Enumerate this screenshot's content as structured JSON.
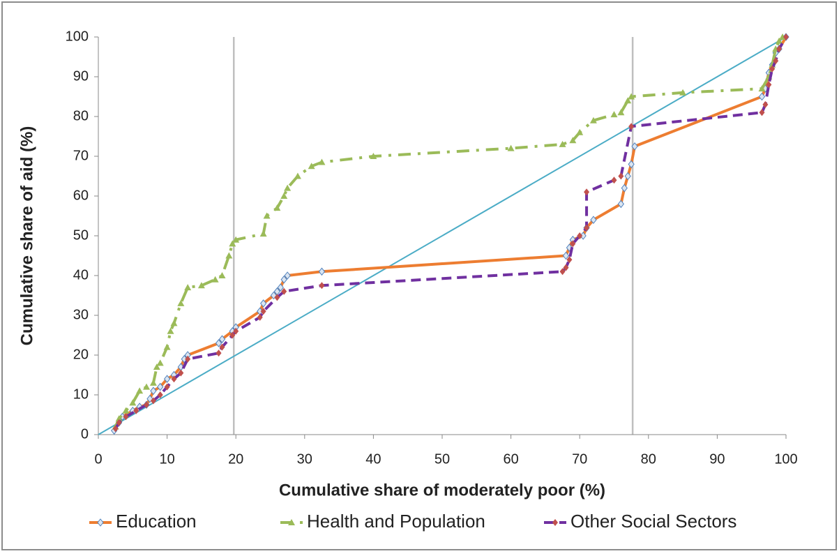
{
  "chart_data": {
    "type": "line",
    "xlabel": "Cumulative share of  moderately poor (%)",
    "ylabel": "Cumulative share of aid (%)",
    "xlim": [
      0,
      100
    ],
    "xticks": [
      0,
      10,
      20,
      30,
      40,
      50,
      60,
      70,
      80,
      90,
      100
    ],
    "ylim": [
      0,
      100
    ],
    "yticks": [
      0,
      10,
      20,
      30,
      40,
      50,
      60,
      70,
      80,
      90,
      100
    ],
    "vlines": [
      19.7,
      77.7
    ],
    "vline_color": "#bfbfbf",
    "diagonal": {
      "x": [
        0,
        100
      ],
      "values": [
        0,
        100
      ],
      "color": "#4bacc6"
    },
    "legend": "bottom",
    "series": [
      {
        "name": "Education",
        "color": "#ed7d31",
        "marker_color": "#7da7d9",
        "dash": "solid",
        "x": [
          2.3,
          3,
          3.5,
          5,
          6,
          7,
          7.5,
          8,
          9,
          10,
          11,
          12,
          12.5,
          13,
          17.5,
          18,
          19.5,
          20,
          23.5,
          24,
          25.5,
          26,
          26.5,
          27,
          27.5,
          32.5,
          68,
          68.5,
          69,
          70.5,
          71,
          72,
          76,
          76.5,
          77,
          77.5,
          78,
          96.5,
          97,
          97.5,
          98,
          98.5,
          99,
          100
        ],
        "values": [
          1,
          3,
          4.5,
          6,
          7,
          7.5,
          9,
          11,
          12,
          14,
          15,
          17,
          19,
          20,
          23,
          24,
          26,
          27,
          31,
          33,
          35,
          36,
          37,
          39,
          40,
          41,
          45,
          47,
          49,
          50,
          52,
          54,
          58,
          62,
          65,
          68,
          72.5,
          85,
          87,
          91,
          93,
          96,
          97,
          100
        ]
      },
      {
        "name": "Health and Population",
        "color": "#9bbb59",
        "marker_color": "#9bbb59",
        "dash": "dashdot",
        "x": [
          2.5,
          3,
          4,
          5,
          6,
          7,
          8,
          8.5,
          9,
          10,
          10.5,
          11,
          12,
          13,
          15,
          17,
          18,
          19,
          19.5,
          20,
          24,
          24.5,
          26,
          27,
          27.5,
          29,
          31,
          32.5,
          40,
          60,
          67.5,
          69,
          70,
          72,
          75,
          76,
          77,
          77.5,
          85,
          96.5,
          97.5,
          98,
          98.5,
          99,
          99.5
        ],
        "values": [
          2,
          4,
          6,
          8,
          11,
          12,
          13,
          17,
          18,
          22,
          26,
          28,
          33,
          37,
          37.5,
          39,
          40,
          45,
          48,
          49,
          50.5,
          55,
          57,
          60,
          62,
          65,
          67.5,
          68.5,
          70,
          72,
          73,
          74,
          76,
          79,
          80.5,
          81,
          84,
          85,
          86,
          87,
          90,
          93,
          97,
          99,
          100
        ]
      },
      {
        "name": "Other Social Sectors",
        "color": "#7030a0",
        "marker_color": "#c0504d",
        "dash": "dash",
        "x": [
          2.5,
          3,
          4,
          5.5,
          7,
          8,
          9,
          10,
          11,
          12,
          13,
          17.5,
          18,
          19.5,
          20,
          23.5,
          24,
          26,
          27,
          32.5,
          67.5,
          68,
          68.5,
          69,
          70,
          71,
          71,
          75,
          76,
          77.5,
          96.5,
          97,
          97.5,
          98,
          98.5,
          99,
          100
        ],
        "values": [
          1.5,
          3,
          4.5,
          6,
          7.5,
          8.5,
          10,
          12,
          14,
          15.5,
          19,
          20.5,
          22,
          25,
          26,
          29.5,
          31,
          34.5,
          36,
          37.5,
          41,
          42,
          44,
          48,
          50,
          52,
          61,
          64,
          65,
          77.5,
          81,
          83,
          88,
          92,
          94,
          97,
          100
        ]
      }
    ]
  }
}
